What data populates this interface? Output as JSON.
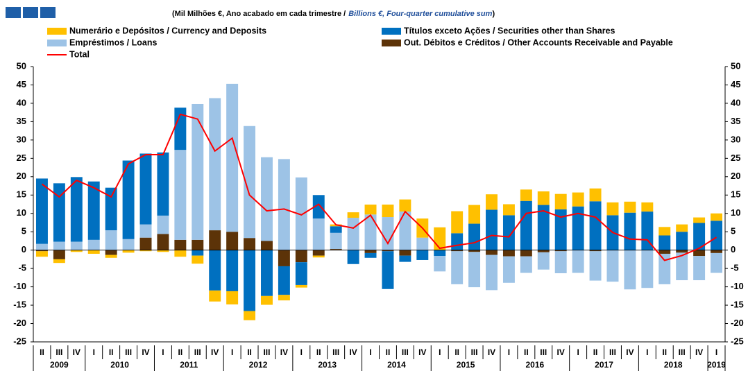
{
  "chart_data": {
    "type": "bar",
    "stacked": true,
    "subtitle_parts": [
      "(Mil Milhões €, Ano acabado em cada trimestre  /",
      "Billions €, Four-quarter cumulative sum",
      ")"
    ],
    "categories": [
      "II",
      "III",
      "IV",
      "I",
      "II",
      "III",
      "IV",
      "I",
      "II",
      "III",
      "IV",
      "I",
      "II",
      "III",
      "IV",
      "I",
      "II",
      "III",
      "IV",
      "I",
      "II",
      "III",
      "IV",
      "I",
      "II",
      "III",
      "IV",
      "I",
      "II",
      "III",
      "IV",
      "I",
      "II",
      "III",
      "IV",
      "I",
      "II",
      "III",
      "IV",
      "I"
    ],
    "years": [
      "2009",
      null,
      null,
      "2010",
      null,
      null,
      null,
      "2011",
      null,
      null,
      null,
      "2012",
      null,
      null,
      null,
      "2013",
      null,
      null,
      null,
      "2014",
      null,
      null,
      null,
      "2015",
      null,
      null,
      null,
      "2016",
      null,
      null,
      null,
      "2017",
      null,
      null,
      null,
      "2018",
      null,
      null,
      null,
      "2019"
    ],
    "series": [
      {
        "name": "Numerário e Depósitos / Currency and Deposits",
        "color": "#ffc000",
        "values": [
          -1.5,
          -1.0,
          -0.5,
          -1.0,
          -0.8,
          -0.7,
          -0.3,
          -0.5,
          -1.8,
          -2.2,
          -3.0,
          -3.6,
          -2.5,
          -2.4,
          -1.5,
          -0.7,
          -0.5,
          0.5,
          1.5,
          2.7,
          3.4,
          3.3,
          5.2,
          6.2,
          6.0,
          5.1,
          4.2,
          3.0,
          3.1,
          3.7,
          4.2,
          3.8,
          3.5,
          3.5,
          3.0,
          2.5,
          2.3,
          2.0,
          1.5,
          2.0
        ]
      },
      {
        "name": "Títulos exceto Ações / Securities other than Shares",
        "color": "#0070c0",
        "values": [
          17.8,
          15.9,
          17.6,
          15.9,
          11.6,
          21.4,
          19.3,
          17.2,
          11.5,
          -1.5,
          -11.0,
          -11.2,
          -16.6,
          -12.5,
          -7.8,
          -6.2,
          6.4,
          1.8,
          -3.8,
          -1.3,
          -10.3,
          -1.7,
          -2.7,
          -1.6,
          4.6,
          7.2,
          11.0,
          9.5,
          13.4,
          12.3,
          11.1,
          11.9,
          13.3,
          9.5,
          10.2,
          10.5,
          4.0,
          5.0,
          7.4,
          8.0
        ]
      },
      {
        "name": "Empréstimos / Loans",
        "color": "#9dc3e6",
        "values": [
          1.7,
          2.3,
          2.3,
          2.8,
          5.4,
          3.0,
          3.6,
          5.0,
          24.5,
          37.0,
          36.0,
          40.3,
          30.5,
          22.8,
          24.8,
          19.8,
          8.6,
          4.4,
          8.8,
          9.7,
          9.0,
          10.5,
          3.4,
          -4.2,
          -9.0,
          -9.6,
          -9.6,
          -7.2,
          -4.5,
          -4.7,
          -6.0,
          -6.2,
          -8.0,
          -8.6,
          -10.7,
          -10.3,
          -8.3,
          -7.5,
          -6.6,
          -5.4
        ]
      },
      {
        "name": "Out. Débitos e Créditos / Other Accounts Receivable and Payable",
        "color": "#5c3308",
        "values": [
          -0.3,
          -2.5,
          0,
          0,
          -1.3,
          0,
          3.4,
          4.4,
          2.8,
          2.8,
          5.4,
          5.0,
          3.3,
          2.5,
          -4.4,
          -3.3,
          -1.5,
          0.3,
          0,
          -0.8,
          -0.3,
          -1.5,
          0,
          0,
          -0.3,
          -0.5,
          -1.3,
          -1.7,
          -1.7,
          -0.6,
          -0.3,
          0,
          -0.3,
          0,
          0,
          0,
          -1.0,
          -0.7,
          -1.6,
          -0.8
        ]
      }
    ],
    "line": {
      "name": "Total",
      "color": "#ff0000",
      "values": [
        18,
        14.5,
        19,
        17,
        14.5,
        23.5,
        26,
        26,
        37,
        35.7,
        27,
        30.5,
        15,
        10.7,
        11.2,
        9.6,
        12.5,
        6.9,
        6,
        9.5,
        1.8,
        10.5,
        6,
        0.5,
        1.3,
        2,
        4,
        3.6,
        10,
        10.7,
        9,
        10,
        9,
        4.8,
        3,
        2.8,
        -2.8,
        -1.5,
        0.5,
        3.5
      ]
    },
    "ylim": [
      -25,
      50
    ],
    "yticks": [
      -25,
      -20,
      -15,
      -10,
      -5,
      0,
      5,
      10,
      15,
      20,
      25,
      30,
      35,
      40,
      45,
      50
    ]
  }
}
